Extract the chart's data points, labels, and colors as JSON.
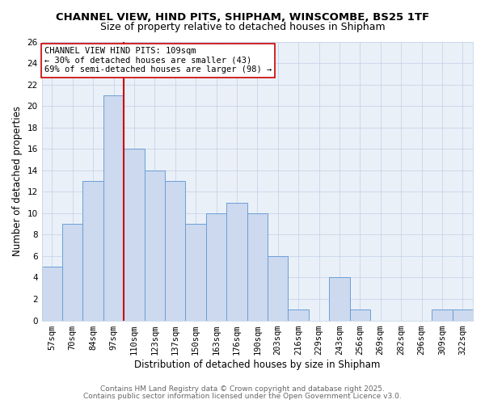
{
  "title": "CHANNEL VIEW, HIND PITS, SHIPHAM, WINSCOMBE, BS25 1TF",
  "subtitle": "Size of property relative to detached houses in Shipham",
  "xlabel": "Distribution of detached houses by size in Shipham",
  "ylabel": "Number of detached properties",
  "bar_labels": [
    "57sqm",
    "70sqm",
    "84sqm",
    "97sqm",
    "110sqm",
    "123sqm",
    "137sqm",
    "150sqm",
    "163sqm",
    "176sqm",
    "190sqm",
    "203sqm",
    "216sqm",
    "229sqm",
    "243sqm",
    "256sqm",
    "269sqm",
    "282sqm",
    "296sqm",
    "309sqm",
    "322sqm"
  ],
  "bar_values": [
    5,
    9,
    13,
    21,
    16,
    14,
    13,
    9,
    10,
    11,
    10,
    6,
    1,
    0,
    4,
    1,
    0,
    0,
    0,
    1,
    1
  ],
  "bar_color": "#ccd9ee",
  "bar_edge_color": "#6a9fd8",
  "ylim": [
    0,
    26
  ],
  "yticks": [
    0,
    2,
    4,
    6,
    8,
    10,
    12,
    14,
    16,
    18,
    20,
    22,
    24,
    26
  ],
  "vline_color": "#cc0000",
  "annotation_title": "CHANNEL VIEW HIND PITS: 109sqm",
  "annotation_line1": "← 30% of detached houses are smaller (43)",
  "annotation_line2": "69% of semi-detached houses are larger (98) →",
  "footer1": "Contains HM Land Registry data © Crown copyright and database right 2025.",
  "footer2": "Contains public sector information licensed under the Open Government Licence v3.0.",
  "background_color": "#ffffff",
  "plot_bg_color": "#eaf0f8",
  "grid_color": "#c8d4e8",
  "title_fontsize": 9.5,
  "subtitle_fontsize": 9,
  "axis_label_fontsize": 8.5,
  "tick_fontsize": 7.5,
  "annotation_fontsize": 7.5,
  "footer_fontsize": 6.5
}
